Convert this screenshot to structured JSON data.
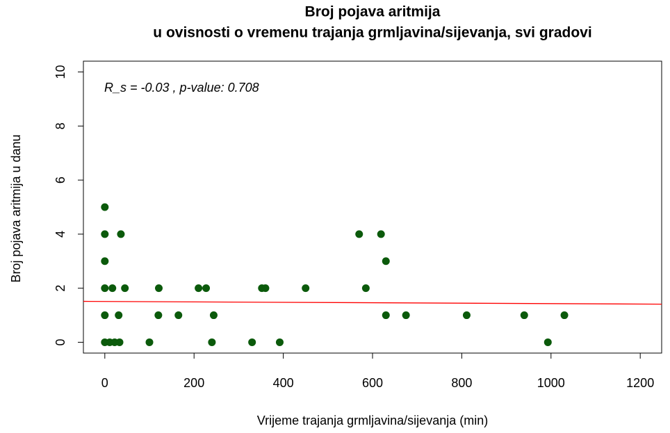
{
  "chart_data": {
    "type": "scatter",
    "title": "Broj pojava aritmija",
    "subtitle": "u ovisnosti o vremenu trajanja grmljavina/sijevanja, svi gradovi",
    "x_label": "Vrijeme trajanja grmljavina/sijevanja (min)",
    "y_label": "Broj pojava aritmija u danu",
    "annotation": "R_s = -0.03 , p-value: 0.708",
    "color": "#0b5a0b",
    "regression": {
      "intercept": 1.51,
      "slope": -8e-05,
      "color": "#ff0000"
    },
    "xlim": [
      -48,
      1248
    ],
    "ylim": [
      -0.4,
      10.4
    ],
    "xticks": [
      0,
      200,
      400,
      600,
      800,
      1000,
      1200
    ],
    "yticks": [
      0,
      2,
      4,
      6,
      8,
      10
    ],
    "x": [
      0,
      0,
      36,
      0,
      0,
      17,
      45,
      121,
      210,
      227,
      352,
      360,
      450,
      585,
      0,
      31,
      120,
      165,
      244,
      630,
      675,
      811,
      940,
      1030,
      0,
      11,
      22,
      33,
      100,
      240,
      330,
      392,
      993,
      570,
      619,
      630
    ],
    "values": [
      5,
      4,
      4,
      3,
      2,
      2,
      2,
      2,
      2,
      2,
      2,
      2,
      2,
      2,
      1,
      1,
      1,
      1,
      1,
      1,
      1,
      1,
      1,
      1,
      0,
      0,
      0,
      0,
      0,
      0,
      0,
      0,
      0,
      4,
      4,
      3
    ]
  }
}
